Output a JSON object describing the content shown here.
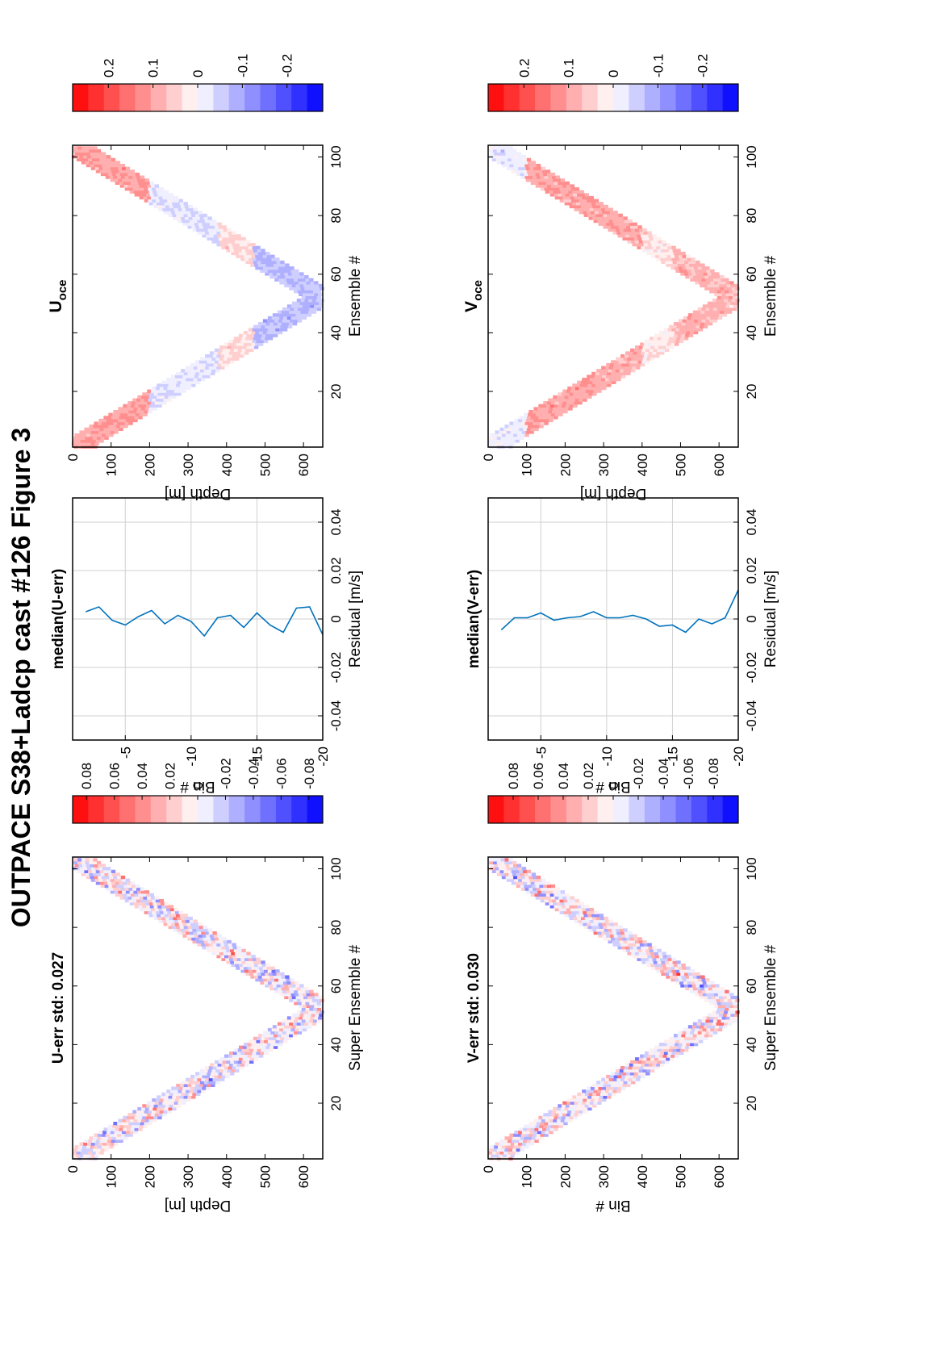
{
  "figure_title": "OUTPACE S38+Ladcp cast #126  Figure 3",
  "colors": {
    "red_max": "#ff0000",
    "white": "#ffffff",
    "blue_max": "#0000ff",
    "line": "#0072bd",
    "grid": "#d0d0d0"
  },
  "chart_data": [
    {
      "type": "heatmap",
      "title": "U-err std: 0.027",
      "xlabel": "Super Ensemble #",
      "ylabel": "Depth [m]",
      "xticks": [
        "20",
        "40",
        "60",
        "80",
        "100"
      ],
      "yticks": [
        "0",
        "100",
        "200",
        "300",
        "400",
        "500",
        "600"
      ],
      "xlim": [
        1,
        104
      ],
      "ylim": [
        0,
        650
      ],
      "color_range": [
        -0.09,
        0.09
      ],
      "colorbar_ticks": [
        "0.08",
        "0.06",
        "0.04",
        "0.02",
        "0",
        "-0.02",
        "-0.04",
        "-0.06",
        "-0.08"
      ]
    },
    {
      "type": "line",
      "title": "median(U-err)",
      "xlabel": "Residual [m/s]",
      "ylabel": "Bin #",
      "xticks": [
        "-0.04",
        "-0.02",
        "0",
        "0.02",
        "0.04"
      ],
      "yticks": [
        "-5",
        "-10",
        "-15",
        "-20"
      ],
      "xlim": [
        -0.05,
        0.05
      ],
      "ylim": [
        -20,
        -1
      ],
      "grid": true,
      "bins": [
        -2,
        -3,
        -4,
        -5,
        -6,
        -7,
        -8,
        -9,
        -10,
        -11,
        -12,
        -13,
        -14,
        -15,
        -16,
        -17,
        -18,
        -19,
        -20
      ],
      "values": [
        0.003,
        0.005,
        -0.0005,
        -0.0025,
        0.001,
        0.0035,
        -0.002,
        0.0015,
        -0.001,
        -0.007,
        0.0005,
        0.0015,
        -0.0035,
        0.0025,
        -0.0025,
        -0.0055,
        0.0045,
        0.005,
        -0.0065
      ]
    },
    {
      "type": "heatmap",
      "title": "Uoce",
      "title_main": "U",
      "title_sub": "oce",
      "xlabel": "Ensemble #",
      "ylabel": "Depth [m]",
      "xticks": [
        "20",
        "40",
        "60",
        "80",
        "100"
      ],
      "yticks": [
        "0",
        "100",
        "200",
        "300",
        "400",
        "500",
        "600"
      ],
      "xlim": [
        1,
        104
      ],
      "ylim": [
        0,
        650
      ],
      "color_range": [
        -0.28,
        0.28
      ],
      "colorbar_ticks": [
        "0.2",
        "0.1",
        "0",
        "-0.1",
        "-0.2"
      ]
    },
    {
      "type": "heatmap",
      "title": "V-err std: 0.030",
      "xlabel": "Super Ensemble #",
      "ylabel": "Bin #",
      "xticks": [
        "20",
        "40",
        "60",
        "80",
        "100"
      ],
      "yticks": [
        "0",
        "100",
        "200",
        "300",
        "400",
        "500",
        "600"
      ],
      "xlim": [
        1,
        104
      ],
      "ylim": [
        0,
        650
      ],
      "color_range": [
        -0.1,
        0.1
      ],
      "colorbar_ticks": [
        "0.08",
        "0.06",
        "0.04",
        "0.02",
        "0",
        "-0.02",
        "-0.04",
        "-0.06",
        "-0.08"
      ]
    },
    {
      "type": "line",
      "title": "median(V-err)",
      "xlabel": "Residual [m/s]",
      "ylabel": "Bin #",
      "xticks": [
        "-0.04",
        "-0.02",
        "0",
        "0.02",
        "0.04"
      ],
      "yticks": [
        "-5",
        "-10",
        "-15",
        "-20"
      ],
      "xlim": [
        -0.05,
        0.05
      ],
      "ylim": [
        -20,
        -1
      ],
      "grid": true,
      "bins": [
        -2,
        -3,
        -4,
        -5,
        -6,
        -7,
        -8,
        -9,
        -10,
        -11,
        -12,
        -13,
        -14,
        -15,
        -16,
        -17,
        -18,
        -19,
        -20
      ],
      "values": [
        -0.0045,
        0.0005,
        0.0005,
        0.0025,
        -0.0005,
        0.0005,
        0.001,
        0.003,
        0.0005,
        0.0005,
        0.0015,
        0.0,
        -0.003,
        -0.0025,
        -0.0055,
        0.0,
        -0.002,
        0.0005,
        0.012
      ]
    },
    {
      "type": "heatmap",
      "title": "Voce",
      "title_main": "V",
      "title_sub": "oce",
      "xlabel": "Ensemble #",
      "ylabel": "Depth [m]",
      "xticks": [
        "20",
        "40",
        "60",
        "80",
        "100"
      ],
      "yticks": [
        "0",
        "100",
        "200",
        "300",
        "400",
        "500",
        "600"
      ],
      "xlim": [
        1,
        104
      ],
      "ylim": [
        0,
        650
      ],
      "color_range": [
        -0.28,
        0.28
      ],
      "colorbar_ticks": [
        "0.2",
        "0.1",
        "0",
        "-0.1",
        "-0.2"
      ]
    }
  ]
}
